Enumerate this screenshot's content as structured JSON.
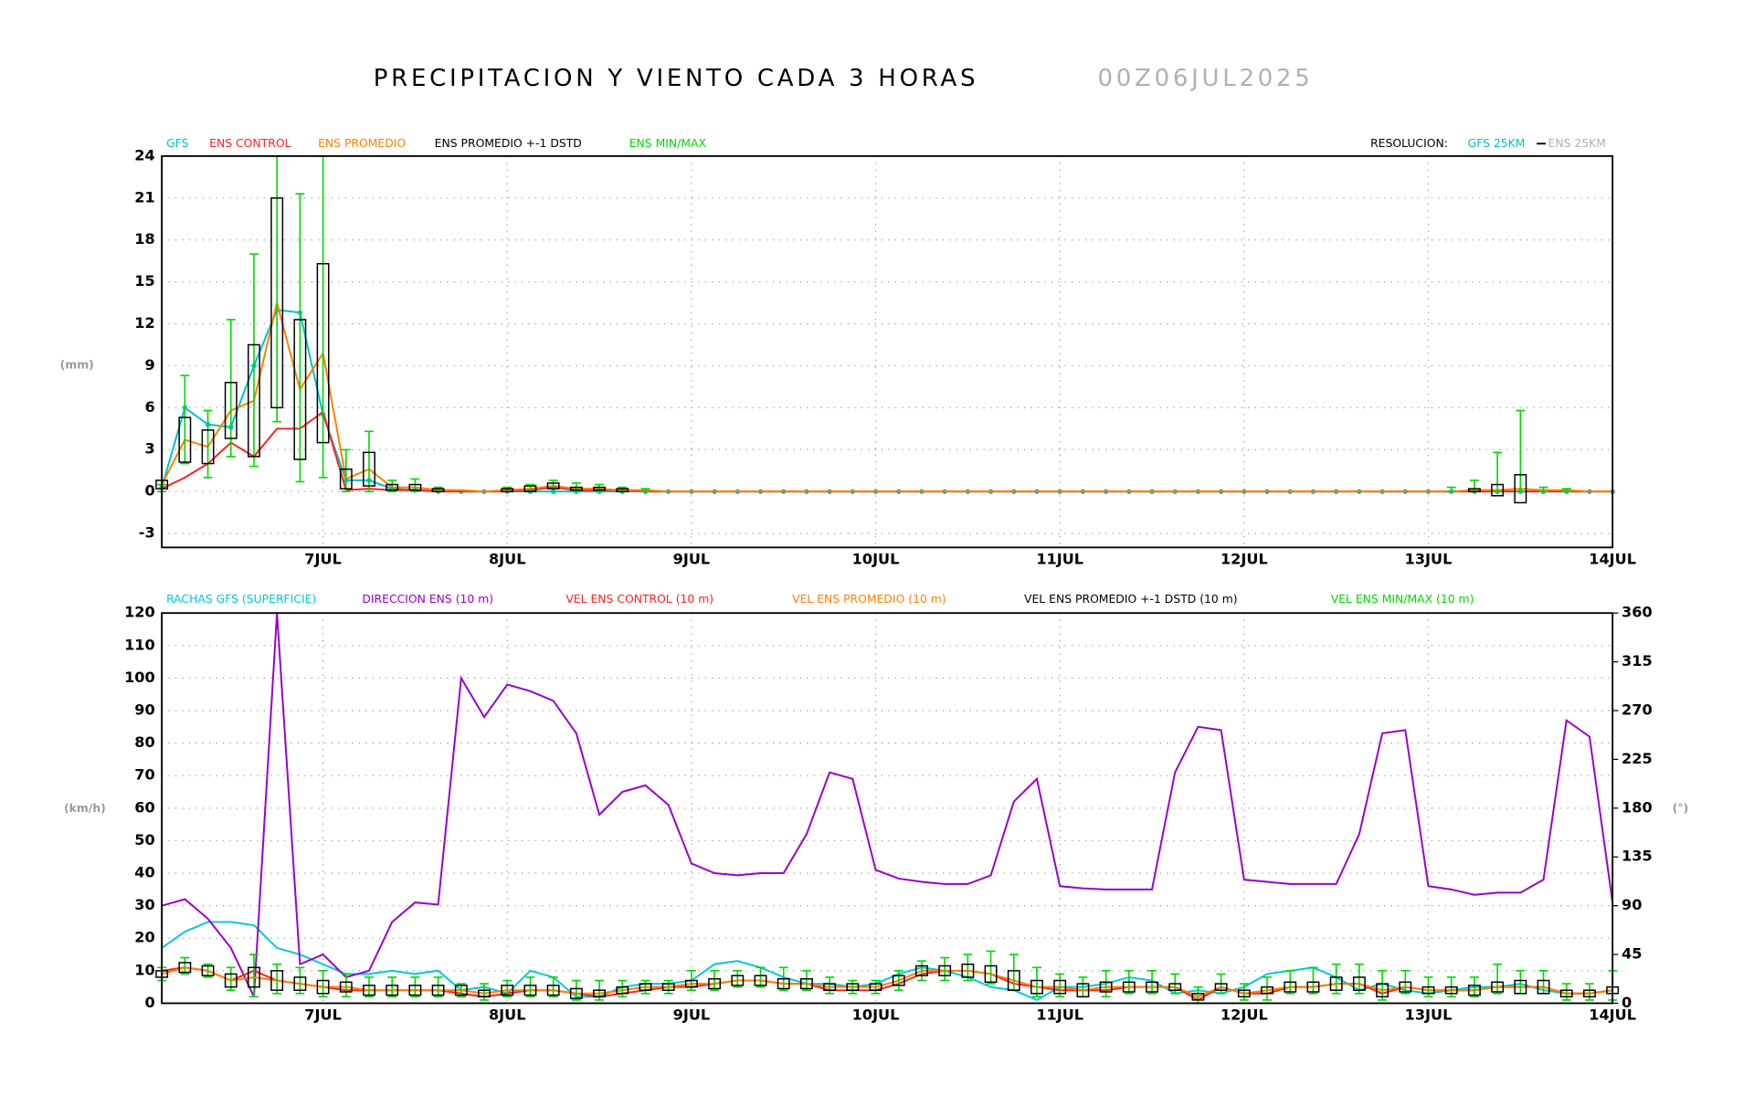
{
  "header": {
    "title": "PRECIPITACION Y VIENTO CADA 3 HORAS",
    "date": "00Z06JUL2025"
  },
  "chart_data": [
    {
      "type": "line",
      "ylabel": "(mm)",
      "grid": true,
      "resolution": {
        "label": "RESOLUCION:",
        "gfs": "GFS 25KM",
        "ens": "ENS 25KM"
      },
      "x": [
        3,
        6,
        9,
        12,
        15,
        18,
        21,
        24,
        27,
        30,
        33,
        36,
        39,
        42,
        45,
        48,
        51,
        54,
        57,
        60,
        63,
        66,
        69,
        72,
        75,
        78,
        81,
        84,
        87,
        90,
        93,
        96,
        99,
        102,
        105,
        108,
        111,
        114,
        117,
        120,
        123,
        126,
        129,
        132,
        135,
        138,
        141,
        144,
        147,
        150,
        153,
        156,
        159,
        162,
        165,
        168,
        171,
        174,
        177,
        180,
        183,
        186,
        189,
        192
      ],
      "xlim": [
        3,
        192
      ],
      "xticks": [
        {
          "value": 24,
          "label": "7JUL"
        },
        {
          "value": 48,
          "label": "8JUL"
        },
        {
          "value": 72,
          "label": "9JUL"
        },
        {
          "value": 96,
          "label": "10JUL"
        },
        {
          "value": 120,
          "label": "11JUL"
        },
        {
          "value": 144,
          "label": "12JUL"
        },
        {
          "value": 168,
          "label": "13JUL"
        },
        {
          "value": 192,
          "label": "14JUL"
        }
      ],
      "ylim": [
        -4,
        24
      ],
      "yticks": [
        -3,
        0,
        3,
        6,
        9,
        12,
        15,
        18,
        21,
        24
      ],
      "series": [
        {
          "name": "GFS",
          "color": "#00c0d0",
          "markers": true,
          "values": [
            0.3,
            6,
            4.8,
            4.6,
            9,
            13,
            12.8,
            5.5,
            0.8,
            0.8,
            0.2,
            0.1,
            0,
            0,
            0,
            0,
            0,
            0,
            0,
            0,
            0,
            0,
            0,
            0,
            0,
            0,
            0,
            0,
            0,
            0,
            0,
            0,
            0,
            0,
            0,
            0,
            0,
            0,
            0,
            0,
            0,
            0,
            0,
            0,
            0,
            0,
            0,
            0,
            0,
            0,
            0,
            0,
            0,
            0,
            0,
            0,
            0,
            0,
            0,
            0,
            0,
            0,
            0,
            0
          ]
        },
        {
          "name": "ENS CONTROL",
          "color": "#ff2020",
          "values": [
            0.2,
            1,
            2,
            3.5,
            2.5,
            4.5,
            4.5,
            5.7,
            0.1,
            0.2,
            0.1,
            0.1,
            0,
            0,
            0,
            0,
            0.1,
            0.3,
            0.1,
            0.1,
            0.1,
            0,
            0,
            0,
            0,
            0,
            0,
            0,
            0,
            0,
            0,
            0,
            0,
            0,
            0,
            0,
            0,
            0,
            0,
            0,
            0,
            0,
            0,
            0,
            0,
            0,
            0,
            0,
            0,
            0,
            0,
            0,
            0,
            0,
            0,
            0,
            0,
            0,
            0,
            0,
            0,
            0,
            0,
            0
          ]
        },
        {
          "name": "ENS PROMEDIO",
          "color": "#ff8000",
          "values": [
            0.5,
            3.7,
            3.2,
            5.8,
            6.5,
            13.5,
            7.3,
            9.9,
            0.9,
            1.6,
            0.3,
            0.3,
            0.1,
            0.1,
            0,
            0.1,
            0.2,
            0.4,
            0.2,
            0.2,
            0.1,
            0.1,
            0,
            0,
            0,
            0,
            0,
            0,
            0,
            0,
            0,
            0,
            0,
            0,
            0,
            0,
            0,
            0,
            0,
            0,
            0,
            0,
            0,
            0,
            0,
            0,
            0,
            0,
            0,
            0,
            0,
            0,
            0,
            0,
            0,
            0,
            0,
            0.1,
            0.1,
            0.2,
            0.1,
            0.1,
            0,
            0
          ]
        }
      ],
      "spread": {
        "name": "ENS PROMEDIO +-1 DSTD",
        "color": "#000000",
        "values": [
          0.3,
          1.6,
          1.2,
          2,
          4,
          7.5,
          5,
          6.4,
          0.7,
          1.2,
          0.2,
          0.2,
          0.1,
          null,
          null,
          0.1,
          0.2,
          0.2,
          0.1,
          0.1,
          0.1,
          null,
          null,
          null,
          null,
          null,
          null,
          null,
          null,
          null,
          null,
          null,
          null,
          null,
          null,
          null,
          null,
          null,
          null,
          null,
          null,
          null,
          null,
          null,
          null,
          null,
          null,
          null,
          null,
          null,
          null,
          null,
          null,
          null,
          null,
          null,
          null,
          0.1,
          0.4,
          1,
          null,
          null,
          null,
          null
        ]
      },
      "range": {
        "name": "ENS MIN/MAX",
        "color": "#00d800",
        "min": [
          0,
          2,
          1,
          2.5,
          1.8,
          5,
          0.7,
          1,
          0,
          0,
          0,
          0,
          0,
          null,
          null,
          0,
          0,
          0,
          0,
          0,
          0,
          0,
          null,
          null,
          null,
          null,
          null,
          null,
          null,
          null,
          null,
          null,
          null,
          null,
          null,
          null,
          null,
          null,
          null,
          null,
          null,
          null,
          null,
          null,
          null,
          null,
          null,
          null,
          null,
          null,
          null,
          null,
          null,
          null,
          null,
          null,
          0,
          0,
          0,
          0,
          0,
          0,
          null,
          null
        ],
        "max": [
          0.5,
          8.3,
          5.8,
          12.3,
          17,
          24,
          21.3,
          24,
          3,
          4.3,
          0.8,
          0.9,
          0.3,
          null,
          null,
          0.3,
          0.5,
          0.8,
          0.6,
          0.5,
          0.3,
          0.2,
          null,
          null,
          null,
          null,
          null,
          null,
          null,
          null,
          null,
          null,
          null,
          null,
          null,
          null,
          null,
          null,
          null,
          null,
          null,
          null,
          null,
          null,
          null,
          null,
          null,
          null,
          null,
          null,
          null,
          null,
          null,
          null,
          null,
          null,
          0.3,
          0.8,
          2.8,
          5.8,
          0.3,
          0.2,
          null,
          null
        ]
      }
    },
    {
      "type": "line",
      "ylabel": "(km/h)",
      "y2label": "(°)",
      "grid": true,
      "x": [
        3,
        6,
        9,
        12,
        15,
        18,
        21,
        24,
        27,
        30,
        33,
        36,
        39,
        42,
        45,
        48,
        51,
        54,
        57,
        60,
        63,
        66,
        69,
        72,
        75,
        78,
        81,
        84,
        87,
        90,
        93,
        96,
        99,
        102,
        105,
        108,
        111,
        114,
        117,
        120,
        123,
        126,
        129,
        132,
        135,
        138,
        141,
        144,
        147,
        150,
        153,
        156,
        159,
        162,
        165,
        168,
        171,
        174,
        177,
        180,
        183,
        186,
        189,
        192
      ],
      "xlim": [
        3,
        192
      ],
      "xticks": [
        {
          "value": 24,
          "label": "7JUL"
        },
        {
          "value": 48,
          "label": "8JUL"
        },
        {
          "value": 72,
          "label": "9JUL"
        },
        {
          "value": 96,
          "label": "10JUL"
        },
        {
          "value": 120,
          "label": "11JUL"
        },
        {
          "value": 144,
          "label": "12JUL"
        },
        {
          "value": 168,
          "label": "13JUL"
        },
        {
          "value": 192,
          "label": "14JUL"
        }
      ],
      "ylim": [
        0,
        120
      ],
      "yticks": [
        0,
        10,
        20,
        30,
        40,
        50,
        60,
        70,
        80,
        90,
        100,
        110,
        120
      ],
      "y2lim": [
        0,
        360
      ],
      "y2ticks": [
        0,
        45,
        90,
        135,
        180,
        225,
        270,
        315,
        360
      ],
      "series": [
        {
          "name": "RACHAS GFS (SUPERFICIE)",
          "color": "#00c8d8",
          "values": [
            17,
            22,
            25,
            25,
            24,
            17,
            15,
            12,
            9,
            9,
            10,
            9,
            10,
            4,
            5,
            3,
            10,
            8,
            2,
            2,
            5,
            6,
            6,
            7,
            12,
            13,
            11,
            8,
            6,
            6,
            5,
            6,
            9,
            11,
            10,
            8,
            5,
            4,
            1,
            5,
            5,
            6,
            8,
            7,
            3,
            4,
            3,
            5,
            9,
            10,
            11,
            8,
            4,
            6,
            4,
            3,
            4,
            5,
            5,
            6,
            4,
            3,
            3,
            4
          ]
        },
        {
          "name": "DIRECCION ENS (10 m)",
          "color": "#9900cc",
          "axis": "y2",
          "values": [
            90,
            96,
            78,
            51,
            6,
            360,
            36,
            45,
            24,
            30,
            75,
            93,
            91,
            300,
            264,
            294,
            288,
            279,
            249,
            174,
            195,
            201,
            183,
            129,
            120,
            118,
            120,
            120,
            156,
            213,
            207,
            123,
            115,
            112,
            110,
            110,
            118,
            186,
            207,
            108,
            106,
            105,
            105,
            105,
            213,
            255,
            252,
            114,
            112,
            110,
            110,
            110,
            156,
            249,
            252,
            108,
            105,
            100,
            102,
            102,
            114,
            261,
            246,
            93
          ]
        },
        {
          "name": "VEL ENS CONTROL (10 m)",
          "color": "#ff2020",
          "values": [
            10,
            11,
            10,
            7,
            10,
            7,
            6,
            5,
            4,
            4,
            4,
            4,
            4,
            3,
            2,
            3,
            4,
            4,
            3,
            2,
            3,
            4,
            5,
            5,
            6,
            7,
            7,
            6,
            6,
            4,
            4,
            4,
            6,
            9,
            10,
            10,
            9,
            6,
            5,
            4,
            4,
            4,
            5,
            5,
            5,
            1,
            5,
            3,
            3,
            5,
            5,
            6,
            6,
            3,
            5,
            4,
            4,
            4,
            5,
            5,
            5,
            3,
            3,
            4
          ]
        },
        {
          "name": "VEL ENS PROMEDIO (10 m)",
          "color": "#ff8000",
          "values": [
            9,
            11,
            10,
            7,
            8,
            7,
            6,
            5,
            5,
            4,
            4,
            4,
            4,
            4,
            3,
            4,
            4,
            4,
            3,
            3,
            4,
            5,
            5,
            6,
            6,
            7,
            7,
            6,
            6,
            5,
            5,
            5,
            7,
            10,
            10,
            10,
            9,
            7,
            5,
            5,
            4,
            5,
            5,
            5,
            5,
            2,
            5,
            3,
            4,
            5,
            5,
            6,
            6,
            4,
            5,
            4,
            4,
            4,
            5,
            5,
            5,
            3,
            3,
            4
          ]
        }
      ],
      "spread": {
        "name": "VEL ENS PROMEDIO +-1 DSTD (10 m)",
        "color": "#000000",
        "values": [
          1,
          1.5,
          1.5,
          2,
          3,
          3,
          2,
          2,
          1.5,
          1.5,
          1.5,
          1.5,
          1.5,
          1.5,
          1,
          1.5,
          1.5,
          1.5,
          1.5,
          1,
          1,
          1,
          1,
          1,
          1.5,
          1.5,
          1.5,
          1.5,
          1.5,
          1,
          1,
          1,
          1.5,
          1.5,
          1.5,
          2,
          2.5,
          3,
          2,
          2,
          2,
          1.5,
          1.5,
          1.5,
          1,
          1,
          1,
          1,
          1,
          1.5,
          1.5,
          2,
          2,
          2,
          1.5,
          1,
          1,
          1.5,
          1.5,
          2,
          2,
          1,
          1,
          1
        ]
      },
      "range": {
        "name": "VEL ENS MIN/MAX (10 m)",
        "color": "#00d800",
        "min": [
          7,
          9,
          8,
          4,
          2,
          3,
          3,
          2,
          2,
          2,
          2,
          2,
          2,
          2,
          1,
          2,
          2,
          2,
          1,
          1,
          2,
          3,
          3,
          4,
          4,
          5,
          5,
          4,
          4,
          3,
          3,
          3,
          4,
          7,
          7,
          7,
          6,
          4,
          2,
          2,
          2,
          2,
          3,
          3,
          3,
          0,
          3,
          1,
          1,
          3,
          3,
          3,
          3,
          1,
          3,
          2,
          2,
          2,
          3,
          3,
          3,
          1,
          1,
          1
        ],
        "max": [
          11,
          14,
          12,
          11,
          15,
          12,
          11,
          10,
          9,
          8,
          8,
          8,
          8,
          6,
          6,
          7,
          8,
          8,
          7,
          7,
          7,
          7,
          7,
          10,
          10,
          10,
          11,
          11,
          10,
          8,
          7,
          7,
          10,
          13,
          14,
          15,
          16,
          15,
          11,
          9,
          8,
          10,
          10,
          10,
          9,
          5,
          9,
          6,
          8,
          10,
          11,
          12,
          12,
          10,
          10,
          8,
          8,
          8,
          12,
          10,
          10,
          6,
          6,
          10
        ]
      }
    }
  ]
}
